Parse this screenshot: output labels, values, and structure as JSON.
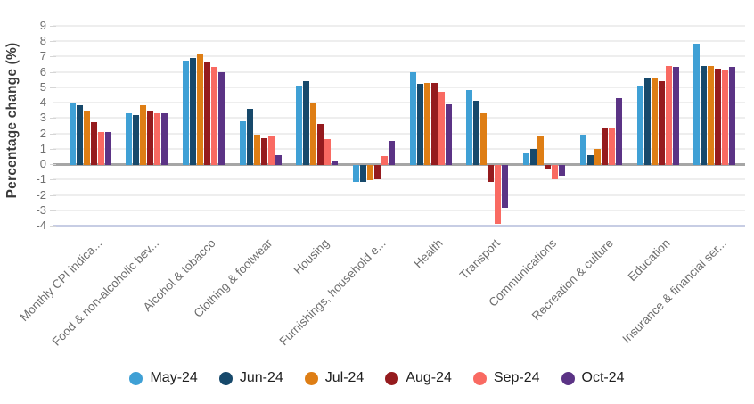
{
  "chart_data": {
    "type": "bar",
    "title": "",
    "xlabel": "",
    "ylabel": "Percentage change (%)",
    "ylim": [
      -4,
      9
    ],
    "yticks": [
      9,
      8,
      7,
      6,
      5,
      4,
      3,
      2,
      1,
      0,
      -1,
      -2,
      -3,
      -4
    ],
    "grid": true,
    "legend_position": "bottom",
    "legend_marker": "circle",
    "categories": [
      "Monthly CPI indica...",
      "Food & non-alcoholic bev...",
      "Alcohol & tobacco",
      "Clothing & footwear",
      "Housing",
      "Furnishings, household e...",
      "Health",
      "Transport",
      "Communications",
      "Recreation & culture",
      "Education",
      "Insurance & financial ser..."
    ],
    "series": [
      {
        "name": "May-24",
        "color": "#3fa0d5",
        "values": [
          4.0,
          3.3,
          6.7,
          2.8,
          5.1,
          -1.1,
          6.0,
          4.8,
          0.7,
          1.9,
          5.1,
          7.8
        ]
      },
      {
        "name": "Jun-24",
        "color": "#17496b",
        "values": [
          3.8,
          3.2,
          6.9,
          3.6,
          5.4,
          -1.1,
          5.2,
          4.1,
          1.0,
          0.6,
          5.6,
          6.4
        ]
      },
      {
        "name": "Jul-24",
        "color": "#de7e15",
        "values": [
          3.5,
          3.8,
          7.2,
          1.9,
          4.0,
          -1.0,
          5.3,
          3.3,
          1.8,
          1.0,
          5.6,
          6.4
        ]
      },
      {
        "name": "Aug-24",
        "color": "#951b1e",
        "values": [
          2.7,
          3.4,
          6.6,
          1.7,
          2.6,
          -0.9,
          5.3,
          -1.1,
          -0.3,
          2.4,
          5.4,
          6.2
        ]
      },
      {
        "name": "Sep-24",
        "color": "#f96a62",
        "values": [
          2.1,
          3.3,
          6.3,
          1.8,
          1.6,
          0.5,
          4.7,
          -3.8,
          -0.9,
          2.3,
          6.4,
          6.1
        ]
      },
      {
        "name": "Oct-24",
        "color": "#5b3385",
        "values": [
          2.1,
          3.3,
          6.0,
          0.6,
          0.2,
          1.5,
          3.9,
          -2.8,
          -0.7,
          4.3,
          6.3,
          6.3
        ]
      }
    ],
    "style_colors": {
      "gridline": "#eeeeee",
      "zero_line": "#a6a6a6",
      "bottom_axis_line": "#c7cde4",
      "tick_text": "#6f6f6f",
      "category_text": "#6f6f6f",
      "axis_title_text": "#3a3a3a",
      "legend_text": "#1f1f1f"
    }
  }
}
